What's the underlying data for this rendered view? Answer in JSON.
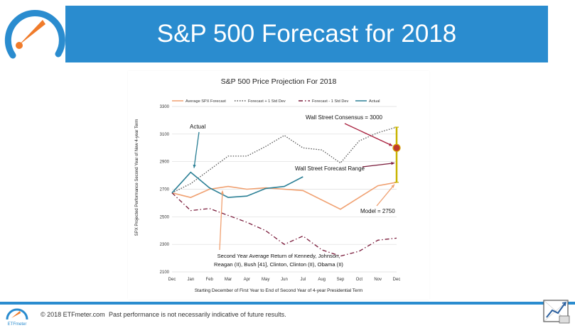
{
  "slide": {
    "title": "S&P 500 Forecast for 2018",
    "header_color": "#2a8ccf"
  },
  "footer": {
    "copyright": "© 2018 ETFmeter.com",
    "disclaimer": "Past performance is not necessarily indicative of future results.",
    "logo_text": "ETFmeter"
  },
  "chart_data": {
    "type": "line",
    "title": "S&P 500 Price Projection For 2018",
    "xlabel": "Starting December of First Year to End of Second Year of 4-year Presidential Term",
    "ylabel": "SPX Projected Performance Second Year of New 4-year Term",
    "categories": [
      "Dec",
      "Jan",
      "Feb",
      "Mar",
      "Apr",
      "May",
      "Jun",
      "Jul",
      "Aug",
      "Sep",
      "Oct",
      "Nov",
      "Dec"
    ],
    "ylim": [
      2100,
      3300
    ],
    "yticks": [
      2100,
      2300,
      2500,
      2700,
      2900,
      3100,
      3300
    ],
    "legend_position": "top",
    "series": [
      {
        "name": "Average SPX Forecast",
        "color": "#f0a070",
        "style": "solid",
        "values": [
          2673,
          2640,
          2700,
          2720,
          2700,
          2710,
          2700,
          2690,
          null,
          2555,
          null,
          2725,
          2750
        ]
      },
      {
        "name": "Forecast + 1 Std Dev",
        "color": "#555555",
        "style": "dotted",
        "values": [
          2673,
          2740,
          2840,
          2940,
          2940,
          3010,
          3090,
          3000,
          2985,
          2890,
          3050,
          3110,
          3150
        ]
      },
      {
        "name": "Forecast - 1 Std Dev",
        "color": "#7a1a3a",
        "style": "dashdot",
        "values": [
          2673,
          2545,
          2560,
          2510,
          2460,
          2400,
          2300,
          2360,
          2260,
          2215,
          2250,
          2330,
          2345
        ]
      },
      {
        "name": "Actual",
        "color": "#2a7f95",
        "style": "solid",
        "values": [
          2673,
          2823,
          2710,
          2640,
          2650,
          2705,
          2720,
          2790,
          null,
          null,
          null,
          null,
          null
        ]
      }
    ],
    "range_bar": {
      "category_index": 12,
      "low": 2750,
      "high": 3150,
      "color": "#c8b400"
    },
    "consensus_point": {
      "category_index": 12,
      "value": 3000,
      "color": "#c0392b"
    },
    "annotations": [
      {
        "text": "Actual"
      },
      {
        "text": "Wall Street Consensus = 3000"
      },
      {
        "text": "Wall Street Forecast Range"
      },
      {
        "text": "Model = 2750"
      },
      {
        "lines": [
          "Second Year Average Return of Kennedy, Johnson,",
          "Reagan (II), Bush [41], Clinton, Clinton (II), Obama (II)"
        ]
      }
    ]
  }
}
